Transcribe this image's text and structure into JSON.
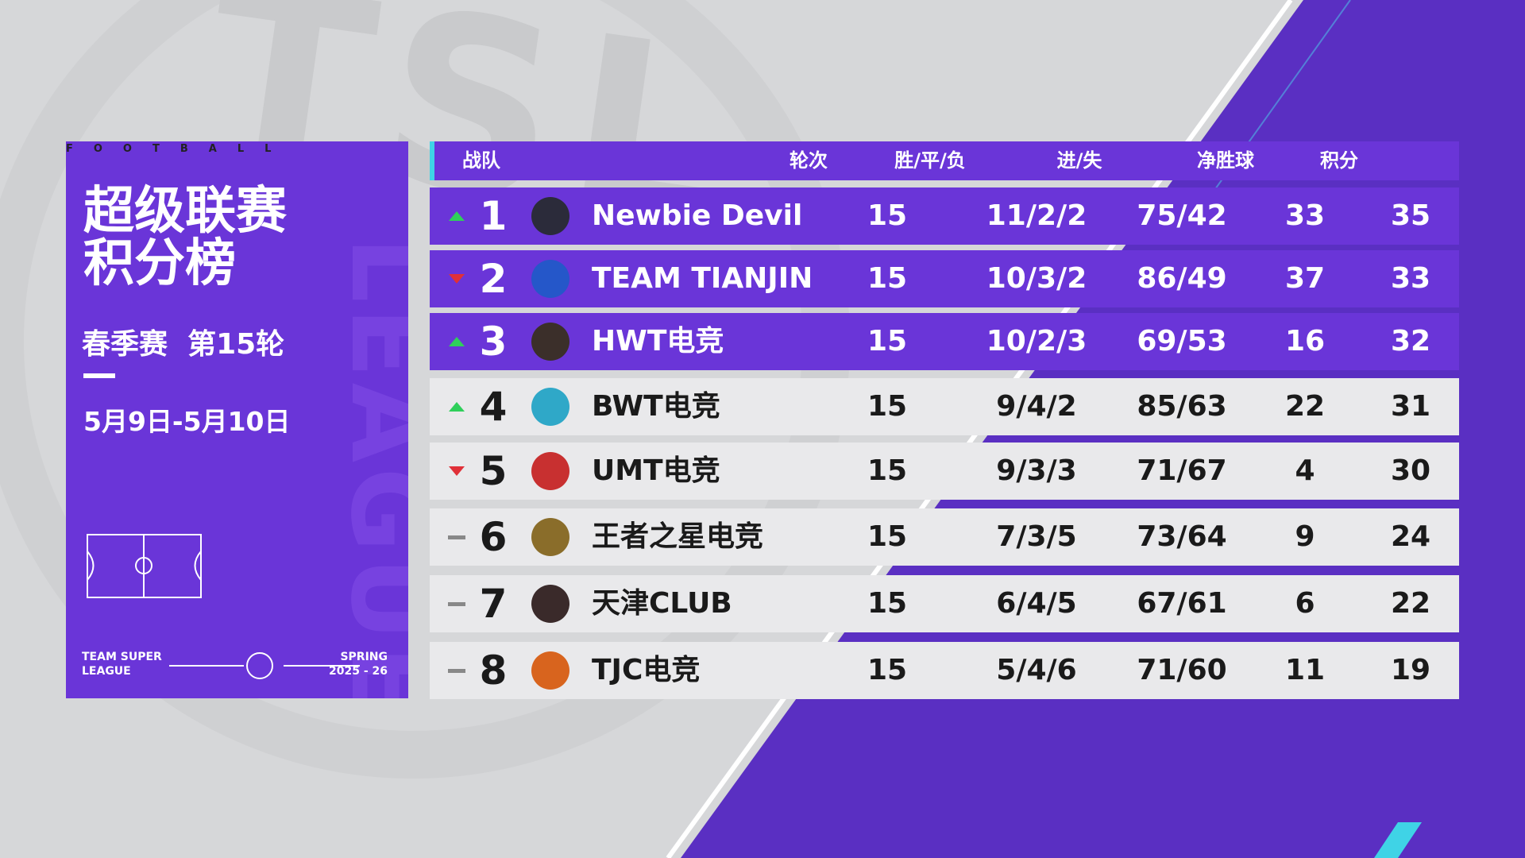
{
  "watermark": {
    "top": "TSL",
    "side": "LEAGUE"
  },
  "panel": {
    "tag": "FOOTBALL",
    "title_line1": "超级联赛",
    "title_line2": "积分榜",
    "round": "春季赛  第15轮",
    "dates": "5月9日-5月10日",
    "league": "TEAM SUPER LEAGUE",
    "season_label": "SPRING",
    "season": "2025 - 26"
  },
  "table": {
    "headers": [
      "战队",
      "轮次",
      "胜/平/负",
      "进/失",
      "净胜球",
      "积分"
    ],
    "rows": [
      {
        "trend": "up",
        "highlight": true,
        "rank": 1,
        "team": "Newbie Devil",
        "played": 15,
        "record": "11/2/2",
        "goals": "75/42",
        "diff": 33,
        "points": 35
      },
      {
        "trend": "down",
        "highlight": true,
        "rank": 2,
        "team": "TEAM TIANJIN",
        "played": 15,
        "record": "10/3/2",
        "goals": "86/49",
        "diff": 37,
        "points": 33
      },
      {
        "trend": "up",
        "highlight": true,
        "rank": 3,
        "team": "HWT电竞",
        "played": 15,
        "record": "10/2/3",
        "goals": "69/53",
        "diff": 16,
        "points": 32
      },
      {
        "trend": "up",
        "highlight": false,
        "rank": 4,
        "team": "BWT电竞",
        "played": 15,
        "record": "9/4/2",
        "goals": "85/63",
        "diff": 22,
        "points": 31
      },
      {
        "trend": "down",
        "highlight": false,
        "rank": 5,
        "team": "UMT电竞",
        "played": 15,
        "record": "9/3/3",
        "goals": "71/67",
        "diff": 4,
        "points": 30
      },
      {
        "trend": "same",
        "highlight": false,
        "rank": 6,
        "team": "王者之星电竞",
        "played": 15,
        "record": "7/3/5",
        "goals": "73/64",
        "diff": 9,
        "points": 24
      },
      {
        "trend": "same",
        "highlight": false,
        "rank": 7,
        "team": "天津CLUB",
        "played": 15,
        "record": "6/4/5",
        "goals": "67/61",
        "diff": 6,
        "points": 22
      },
      {
        "trend": "same",
        "highlight": false,
        "rank": 8,
        "team": "TJC电竞",
        "played": 15,
        "record": "5/4/6",
        "goals": "71/60",
        "diff": 11,
        "points": 19
      }
    ]
  }
}
